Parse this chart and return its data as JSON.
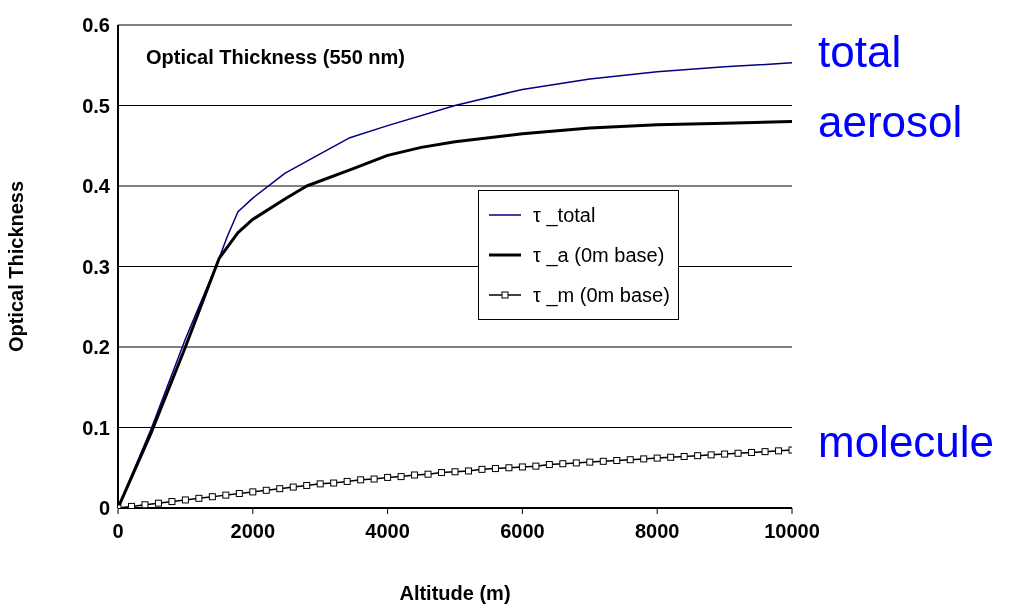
{
  "chart_data": {
    "type": "line",
    "title": "Optical Thickness (550 nm)",
    "xlabel": "Altitude (m)",
    "ylabel": "Optical Thickness",
    "xlim": [
      0,
      10000
    ],
    "xticks": [
      0,
      2000,
      4000,
      6000,
      8000,
      10000
    ],
    "ylim": [
      0,
      0.6
    ],
    "yticks": [
      0,
      0.1,
      0.2,
      0.3,
      0.4,
      0.5,
      0.6
    ],
    "grid": "y",
    "legend": "right",
    "series": [
      {
        "name": "τ _total",
        "color": "#000080",
        "marker": "none",
        "x": [
          0,
          500,
          1000,
          1500,
          1620,
          1780,
          2000,
          2480,
          3000,
          3440,
          4000,
          5000,
          6000,
          7000,
          8000,
          9000,
          10000
        ],
        "values": [
          0,
          0.1,
          0.21,
          0.31,
          0.337,
          0.368,
          0.385,
          0.416,
          0.44,
          0.46,
          0.475,
          0.5,
          0.52,
          0.533,
          0.542,
          0.548,
          0.553
        ]
      },
      {
        "name": "τ _a (0m base)",
        "color": "#000000",
        "marker": "none",
        "x": [
          0,
          500,
          1000,
          1500,
          1780,
          1990,
          2500,
          2800,
          3500,
          4000,
          4500,
          5000,
          6000,
          7000,
          8000,
          9000,
          10000
        ],
        "values": [
          0,
          0.095,
          0.2,
          0.31,
          0.342,
          0.358,
          0.385,
          0.4,
          0.422,
          0.438,
          0.448,
          0.455,
          0.465,
          0.472,
          0.476,
          0.478,
          0.48
        ]
      },
      {
        "name": "τ _m (0m base)",
        "color": "#000000",
        "marker": "square",
        "x": [
          0,
          200,
          400,
          600,
          800,
          1000,
          1200,
          1400,
          1600,
          1800,
          2000,
          2200,
          2400,
          2600,
          2800,
          3000,
          3200,
          3400,
          3600,
          3800,
          4000,
          4200,
          4400,
          4600,
          4800,
          5000,
          5200,
          5400,
          5600,
          5800,
          6000,
          6200,
          6400,
          6600,
          6800,
          7000,
          7200,
          7400,
          7600,
          7800,
          8000,
          8200,
          8400,
          8600,
          8800,
          9000,
          9200,
          9400,
          9600,
          9800,
          10000
        ],
        "values": [
          0,
          0.002,
          0.004,
          0.006,
          0.008,
          0.01,
          0.012,
          0.014,
          0.016,
          0.018,
          0.02,
          0.022,
          0.024,
          0.026,
          0.028,
          0.03,
          0.031,
          0.033,
          0.035,
          0.036,
          0.038,
          0.039,
          0.041,
          0.042,
          0.044,
          0.045,
          0.046,
          0.048,
          0.049,
          0.05,
          0.051,
          0.052,
          0.054,
          0.055,
          0.056,
          0.057,
          0.058,
          0.059,
          0.06,
          0.061,
          0.062,
          0.063,
          0.064,
          0.065,
          0.066,
          0.067,
          0.068,
          0.069,
          0.07,
          0.071,
          0.072
        ]
      }
    ],
    "annotations": [
      "total",
      "aerosol",
      "molecule"
    ]
  }
}
